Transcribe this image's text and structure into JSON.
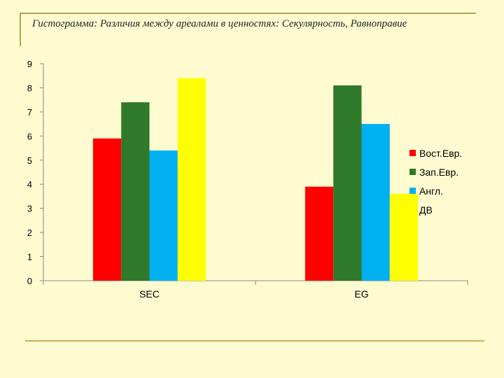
{
  "title": "Гистограмма: Различия между ареалами в ценностях: Секулярность,  Равноправие",
  "chart_data": {
    "type": "bar",
    "categories": [
      "SEC",
      "EG"
    ],
    "series": [
      {
        "name": "Вост.Евр.",
        "color": "#ff0000",
        "values": [
          5.9,
          3.9
        ]
      },
      {
        "name": "Зап.Евр.",
        "color": "#2f7a2a",
        "values": [
          7.4,
          8.1
        ]
      },
      {
        "name": "Англ.",
        "color": "#00b0f0",
        "values": [
          5.4,
          6.5
        ]
      },
      {
        "name": "ДВ",
        "color": "#ffff00",
        "values": [
          8.4,
          3.6
        ]
      }
    ],
    "ylim": [
      0,
      9
    ],
    "yticks": [
      "0",
      "1",
      "2",
      "3",
      "4",
      "5",
      "6",
      "7",
      "8",
      "9"
    ],
    "legend_position": "right",
    "grid": false
  }
}
